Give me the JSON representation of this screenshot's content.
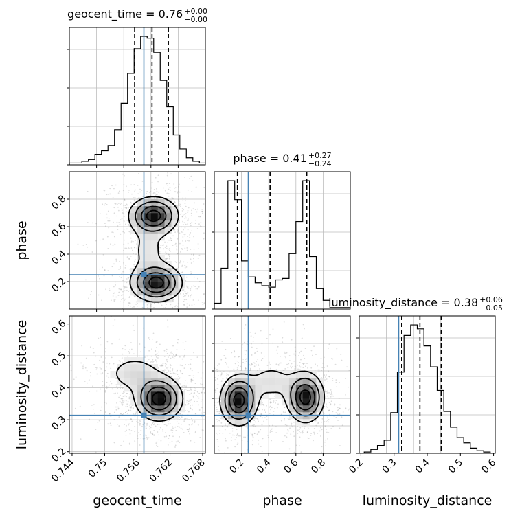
{
  "figure": {
    "parameters": [
      "geocent_time",
      "phase",
      "luminosity_distance"
    ]
  },
  "chart_data": [
    {
      "type": "histogram",
      "parameter": "geocent_time",
      "title": {
        "label": "geocent_time = 0.76",
        "plus": "+0.00",
        "minus": "−0.00"
      },
      "xlim": [
        0.7435,
        0.7685
      ],
      "bins_x": [
        0.7435,
        0.7446,
        0.7458,
        0.747,
        0.7482,
        0.7494,
        0.7506,
        0.7518,
        0.753,
        0.7542,
        0.7554,
        0.7566,
        0.7578,
        0.759,
        0.7602,
        0.7614,
        0.7626,
        0.7638,
        0.765,
        0.7662,
        0.7674,
        0.7686
      ],
      "counts": [
        1,
        1,
        2,
        3,
        6,
        8,
        11,
        20,
        35,
        52,
        66,
        73,
        72,
        64,
        48,
        33,
        17,
        9,
        4,
        2,
        1
      ],
      "quantiles": [
        0.7555,
        0.7587,
        0.7617
      ],
      "truth": 0.7572,
      "grid": true
    },
    {
      "type": "histogram",
      "parameter": "phase",
      "title": {
        "label": "phase = 0.41",
        "plus": "+0.27",
        "minus": "−0.24"
      },
      "xlim": [
        0.0,
        1.0
      ],
      "bins_x": [
        0.0,
        0.05,
        0.1,
        0.15,
        0.2,
        0.25,
        0.3,
        0.35,
        0.4,
        0.45,
        0.5,
        0.55,
        0.6,
        0.65,
        0.7,
        0.75,
        0.8,
        0.85,
        0.9,
        0.95,
        1.0
      ],
      "counts": [
        4,
        28,
        88,
        75,
        33,
        22,
        18,
        16,
        15,
        20,
        21,
        38,
        60,
        88,
        36,
        14,
        6,
        1,
        1,
        1
      ],
      "quantiles": [
        0.17,
        0.41,
        0.68
      ],
      "truth": 0.25,
      "grid": true
    },
    {
      "type": "histogram",
      "parameter": "luminosity_distance",
      "title": {
        "label": "luminosity_distance = 0.38",
        "plus": "+0.06",
        "minus": "−0.05"
      },
      "xlim": [
        0.195,
        0.605
      ],
      "xticks": [
        0.2,
        0.3,
        0.4,
        0.5,
        0.6
      ],
      "xlabel": "luminosity_distance",
      "bins_x": [
        0.21,
        0.23,
        0.25,
        0.27,
        0.29,
        0.31,
        0.33,
        0.35,
        0.37,
        0.39,
        0.41,
        0.43,
        0.45,
        0.47,
        0.49,
        0.51,
        0.53,
        0.55,
        0.57,
        0.59
      ],
      "counts": [
        1,
        3,
        6,
        10,
        31,
        62,
        90,
        98,
        95,
        82,
        66,
        48,
        32,
        20,
        12,
        8,
        4,
        2,
        1
      ],
      "quantiles": [
        0.323,
        0.378,
        0.442
      ],
      "truth": 0.314,
      "grid": true
    },
    {
      "type": "contour",
      "x_parameter": "geocent_time",
      "y_parameter": "phase",
      "xlim": [
        0.7435,
        0.7685
      ],
      "ylim": [
        0.0,
        1.0
      ],
      "yticks": [
        0.2,
        0.4,
        0.6,
        0.8
      ],
      "ylabel": "phase",
      "modes": [
        {
          "x": 0.759,
          "y": 0.68,
          "sx": 0.0023,
          "sy": 0.07,
          "w": 1.0
        },
        {
          "x": 0.7595,
          "y": 0.19,
          "sx": 0.0024,
          "sy": 0.07,
          "w": 1.0
        },
        {
          "x": 0.758,
          "y": 0.43,
          "sx": 0.0025,
          "sy": 0.12,
          "w": 0.18
        }
      ],
      "truth": {
        "x": 0.7572,
        "y": 0.25
      },
      "grid": true
    },
    {
      "type": "contour",
      "x_parameter": "geocent_time",
      "y_parameter": "luminosity_distance",
      "xlim": [
        0.7435,
        0.7685
      ],
      "ylim": [
        0.195,
        0.625
      ],
      "xticks": [
        0.744,
        0.75,
        0.756,
        0.762,
        0.768
      ],
      "yticks": [
        0.2,
        0.3,
        0.4,
        0.5,
        0.6
      ],
      "xlabel": "geocent_time",
      "ylabel": "luminosity_distance",
      "modes": [
        {
          "x": 0.76,
          "y": 0.365,
          "sx": 0.0022,
          "sy": 0.035,
          "w": 1.0
        },
        {
          "x": 0.7555,
          "y": 0.445,
          "sx": 0.0035,
          "sy": 0.04,
          "w": 0.22
        }
      ],
      "truth": {
        "x": 0.7572,
        "y": 0.314
      },
      "grid": true
    },
    {
      "type": "contour",
      "x_parameter": "phase",
      "y_parameter": "luminosity_distance",
      "xlim": [
        0.0,
        1.0
      ],
      "ylim": [
        0.195,
        0.625
      ],
      "xticks": [
        0.2,
        0.4,
        0.6,
        0.8
      ],
      "xlabel": "phase",
      "modes": [
        {
          "x": 0.18,
          "y": 0.36,
          "sx": 0.07,
          "sy": 0.04,
          "w": 1.0
        },
        {
          "x": 0.67,
          "y": 0.37,
          "sx": 0.07,
          "sy": 0.04,
          "w": 1.0
        },
        {
          "x": 0.42,
          "y": 0.42,
          "sx": 0.12,
          "sy": 0.04,
          "w": 0.2
        }
      ],
      "truth": {
        "x": 0.25,
        "y": 0.314
      },
      "grid": true
    }
  ],
  "colors": {
    "truth": "#4682b4",
    "grid": "#bdbdbd",
    "contour": "#000000",
    "scatter": "#9a9a9a"
  }
}
